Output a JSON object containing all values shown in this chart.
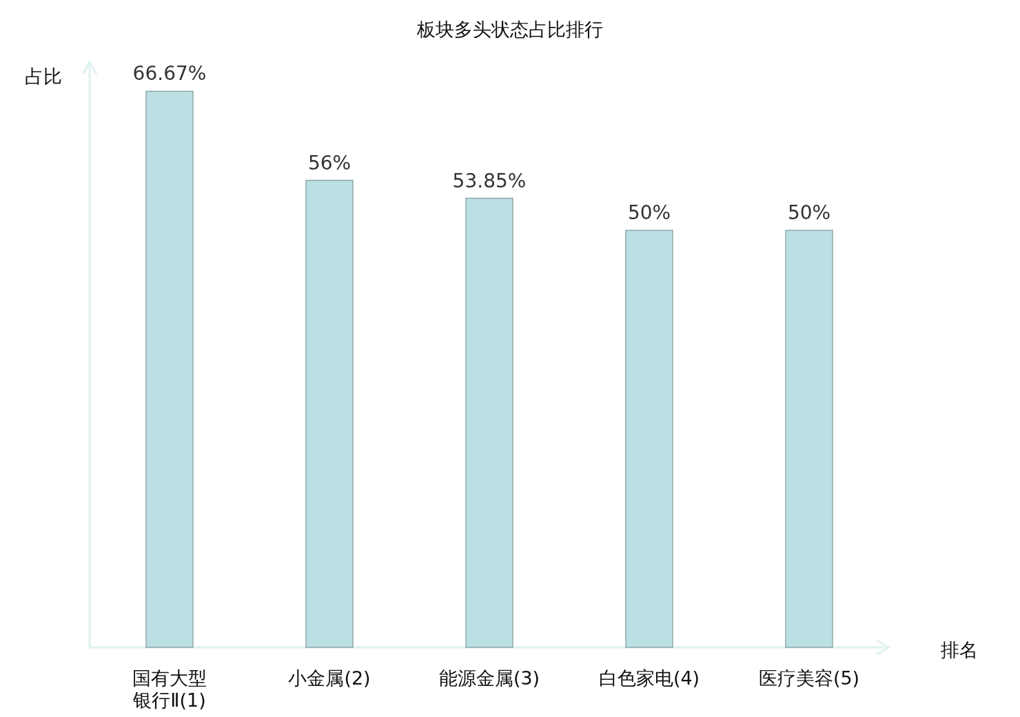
{
  "chart_data": {
    "type": "bar",
    "title": "板块多头状态占比排行",
    "xlabel": "排名",
    "ylabel": "占比",
    "categories": [
      "国有大型银行Ⅱ(1)",
      "小金属(2)",
      "能源金属(3)",
      "白色家电(4)",
      "医疗美容(5)"
    ],
    "values": [
      66.67,
      56,
      53.85,
      50,
      50
    ],
    "color": "#bbe0e3",
    "value_labels": [
      "66.67%",
      "56%",
      "53.85%",
      "50%",
      "50%"
    ]
  }
}
